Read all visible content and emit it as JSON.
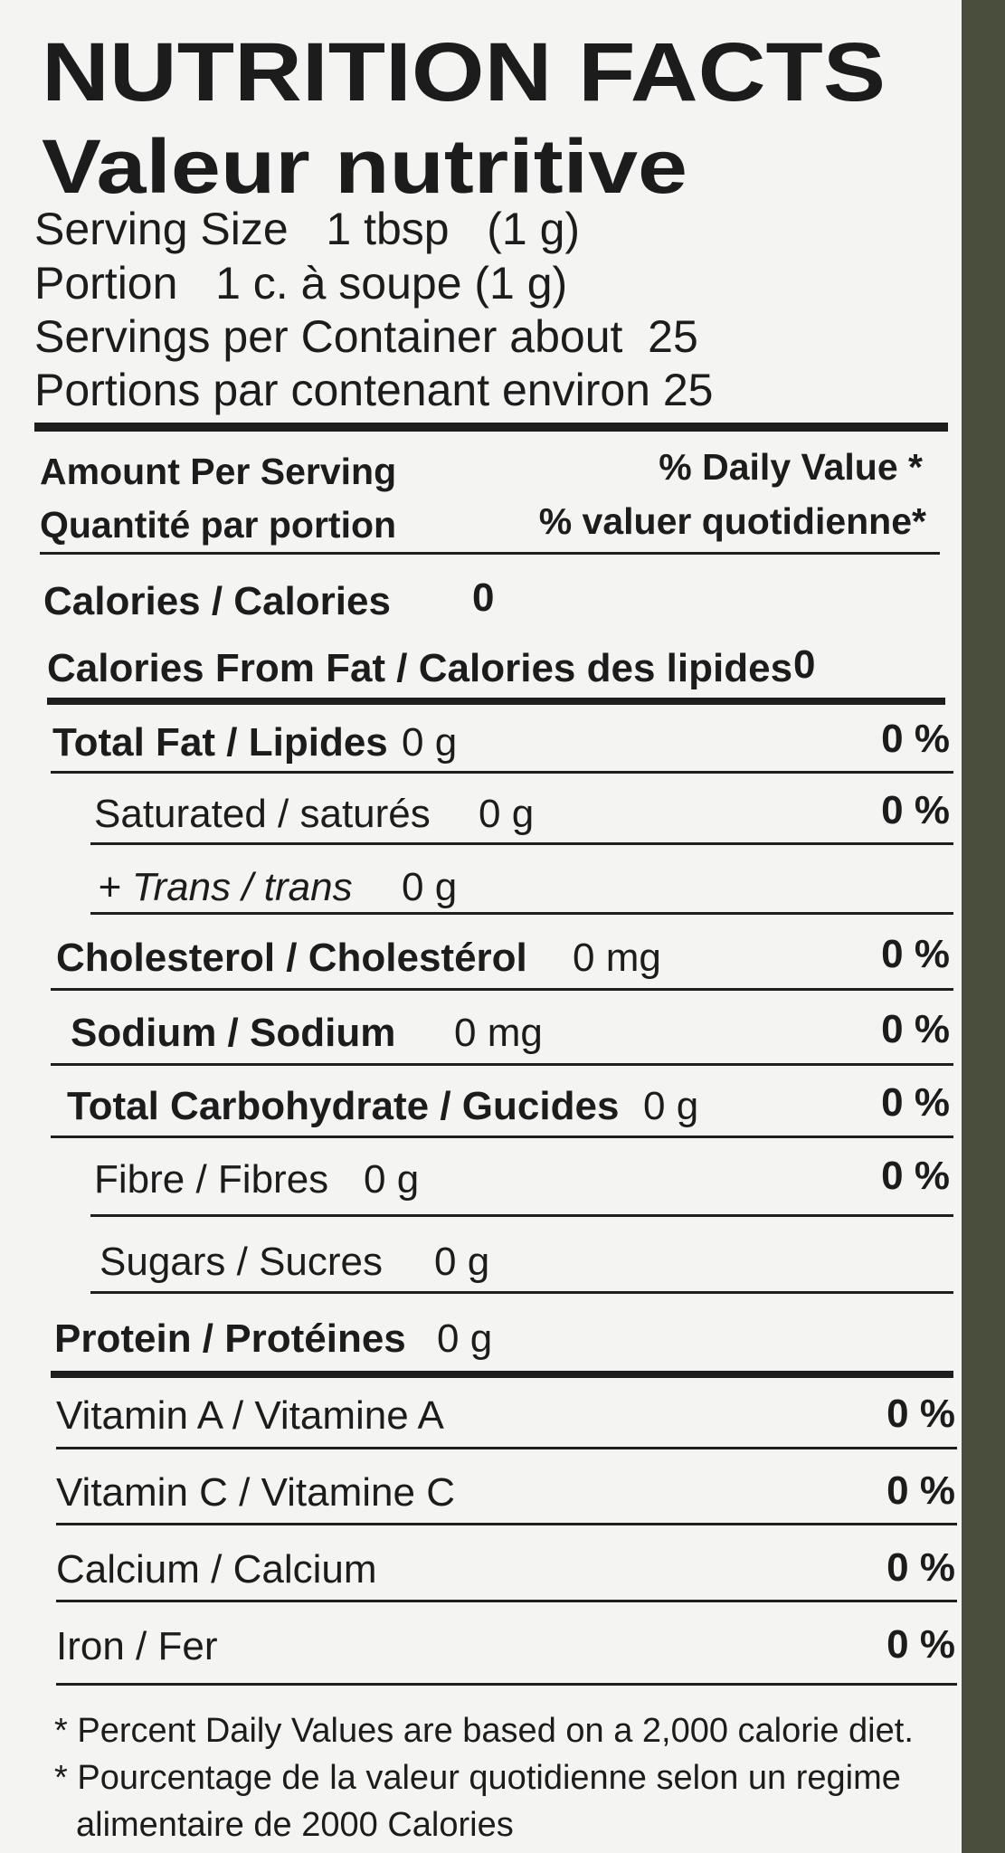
{
  "header": {
    "title": "NUTRITION FACTS",
    "subtitle": "Valeur nutritive"
  },
  "serving": [
    "Serving Size   1 tbsp   (1 g)",
    "Portion   1 c. à soupe (1 g)",
    "Servings per Container about  25",
    "Portions par contenant environ 25"
  ],
  "columns": {
    "amount_en": "Amount Per Serving",
    "amount_fr": "Quantité par portion",
    "dv_en": "% Daily Value *",
    "dv_fr": "% valuer quotidienne*"
  },
  "calories": {
    "label": "Calories / Calories",
    "value": "0"
  },
  "calories_from_fat": {
    "label": "Calories From Fat / Calories des lipides",
    "value": "0"
  },
  "nutrients": [
    {
      "label": "Total Fat / Lipides",
      "amount": "0 g",
      "dv": "0 %"
    },
    {
      "label": "Saturated / saturés",
      "amount": "0 g",
      "dv": "0 %"
    },
    {
      "label": "+ Trans / trans",
      "amount": "0 g"
    },
    {
      "label": "Cholesterol / Cholestérol",
      "amount": "0 mg",
      "dv": "0 %"
    },
    {
      "label": "Sodium / Sodium",
      "amount": "0 mg",
      "dv": "0 %"
    },
    {
      "label": "Total Carbohydrate / Gucides",
      "amount": "0 g",
      "dv": "0 %"
    },
    {
      "label": "Fibre / Fibres",
      "amount": "0 g",
      "dv": "0 %"
    },
    {
      "label": "Sugars / Sucres",
      "amount": "0 g"
    },
    {
      "label": "Protein / Protéines",
      "amount": "0 g"
    }
  ],
  "vitamins": [
    {
      "label": "Vitamin A / Vitamine A",
      "dv": "0 %"
    },
    {
      "label": "Vitamin C / Vitamine C",
      "dv": "0 %"
    },
    {
      "label": "Calcium / Calcium",
      "dv": "0 %"
    },
    {
      "label": "Iron / Fer",
      "dv": "0 %"
    }
  ],
  "footnotes": [
    "* Percent Daily Values are based on a 2,000 calorie diet.",
    "* Pourcentage de la valeur quotidienne selon un regime",
    "alimentaire de 2000 Calories"
  ]
}
